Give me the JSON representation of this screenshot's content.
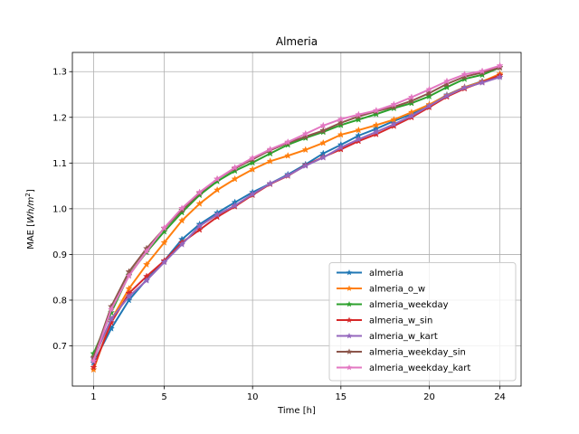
{
  "chart_data": {
    "type": "line",
    "title": "Almeria",
    "xlabel": "Time [h]",
    "ylabel": "MAE [Wh/m²]",
    "ylabel_prefix": "MAE [",
    "ylabel_italic": "Wh/m",
    "ylabel_sup": "2",
    "ylabel_suffix": "]",
    "xlim": [
      -0.2,
      25.2
    ],
    "ylim": [
      0.612,
      1.342
    ],
    "xticks": [
      1,
      5,
      10,
      15,
      20,
      24
    ],
    "xtick_labels": [
      "1",
      "5",
      "10",
      "15",
      "20",
      "24"
    ],
    "yticks": [
      0.7,
      0.8,
      0.9,
      1.0,
      1.1,
      1.2,
      1.3
    ],
    "ytick_labels": [
      "0.7",
      "0.8",
      "0.9",
      "1.0",
      "1.1",
      "1.2",
      "1.3"
    ],
    "grid": true,
    "legend_position": "lower-right",
    "marker": "star",
    "x": [
      1,
      2,
      3,
      4,
      5,
      6,
      7,
      8,
      9,
      10,
      11,
      12,
      13,
      14,
      15,
      16,
      17,
      18,
      19,
      20,
      21,
      22,
      23,
      24
    ],
    "series": [
      {
        "name": "almeria",
        "color": "#1f77b4",
        "values": [
          0.663,
          0.738,
          0.8,
          0.845,
          0.886,
          0.933,
          0.966,
          0.991,
          1.014,
          1.036,
          1.055,
          1.075,
          1.097,
          1.121,
          1.14,
          1.16,
          1.175,
          1.192,
          1.207,
          1.227,
          1.249,
          1.266,
          1.279,
          1.292
        ]
      },
      {
        "name": "almeria_o_w",
        "color": "#ff7f0e",
        "values": [
          0.648,
          0.757,
          0.825,
          0.878,
          0.926,
          0.974,
          1.011,
          1.041,
          1.065,
          1.086,
          1.104,
          1.116,
          1.129,
          1.144,
          1.162,
          1.172,
          1.183,
          1.195,
          1.211,
          1.228,
          1.248,
          1.266,
          1.278,
          1.295
        ]
      },
      {
        "name": "almeria_weekday",
        "color": "#2ca02c",
        "values": [
          0.683,
          0.773,
          0.855,
          0.905,
          0.95,
          0.992,
          1.03,
          1.06,
          1.083,
          1.101,
          1.121,
          1.14,
          1.155,
          1.168,
          1.183,
          1.195,
          1.207,
          1.22,
          1.231,
          1.246,
          1.266,
          1.284,
          1.293,
          1.309
        ]
      },
      {
        "name": "almeria_w_sin",
        "color": "#d62728",
        "values": [
          0.653,
          0.751,
          0.815,
          0.852,
          0.886,
          0.926,
          0.954,
          0.982,
          1.005,
          1.03,
          1.054,
          1.072,
          1.095,
          1.113,
          1.13,
          1.148,
          1.163,
          1.181,
          1.2,
          1.222,
          1.245,
          1.263,
          1.277,
          1.292
        ]
      },
      {
        "name": "almeria_w_kart",
        "color": "#9467bd",
        "values": [
          0.672,
          0.759,
          0.808,
          0.843,
          0.883,
          0.922,
          0.962,
          0.987,
          1.007,
          1.032,
          1.055,
          1.073,
          1.094,
          1.112,
          1.134,
          1.152,
          1.168,
          1.185,
          1.203,
          1.225,
          1.247,
          1.265,
          1.276,
          1.288
        ]
      },
      {
        "name": "almeria_weekday_sin",
        "color": "#8c564b",
        "values": [
          0.675,
          0.786,
          0.862,
          0.913,
          0.957,
          0.997,
          1.034,
          1.065,
          1.088,
          1.108,
          1.128,
          1.144,
          1.158,
          1.171,
          1.188,
          1.202,
          1.213,
          1.223,
          1.236,
          1.253,
          1.273,
          1.289,
          1.298,
          1.309
        ]
      },
      {
        "name": "almeria_weekday_kart",
        "color": "#e377c2",
        "values": [
          0.667,
          0.78,
          0.853,
          0.907,
          0.958,
          1.001,
          1.036,
          1.065,
          1.09,
          1.111,
          1.13,
          1.146,
          1.164,
          1.182,
          1.196,
          1.206,
          1.215,
          1.228,
          1.244,
          1.261,
          1.279,
          1.294,
          1.301,
          1.313
        ]
      }
    ]
  }
}
